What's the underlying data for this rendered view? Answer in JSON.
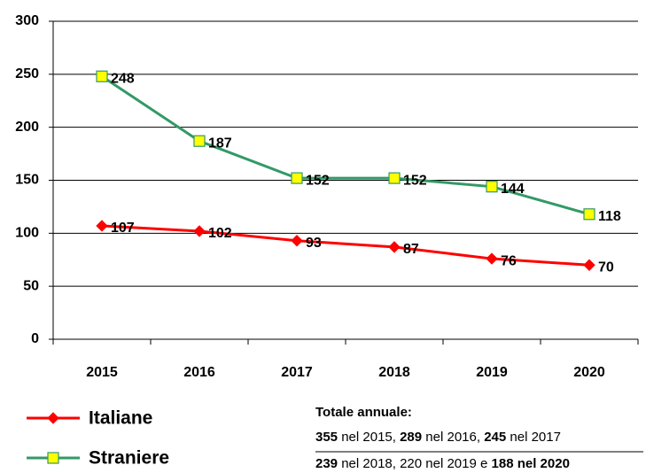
{
  "chart_data": {
    "type": "line",
    "categories": [
      "2015",
      "2016",
      "2017",
      "2018",
      "2019",
      "2020"
    ],
    "series": [
      {
        "name": "Italiane",
        "color": "#ff0000",
        "marker": "diamond",
        "marker_fill": "#ff0000",
        "values": [
          107,
          102,
          93,
          87,
          76,
          70
        ]
      },
      {
        "name": "Straniere",
        "color": "#339966",
        "marker": "square",
        "marker_fill": "#ffff00",
        "values": [
          248,
          187,
          152,
          152,
          144,
          118
        ]
      }
    ],
    "ylim": [
      0,
      300
    ],
    "yticks": [
      0,
      50,
      100,
      150,
      200,
      250,
      300
    ],
    "grid": true,
    "legend": "bottom-left",
    "note": {
      "heading": "Totale annuale:",
      "lines": [
        [
          {
            "text": "355",
            "bold": true
          },
          {
            "text": " nel 2015, "
          },
          {
            "text": "289",
            "bold": true
          },
          {
            "text": " nel 2016, "
          },
          {
            "text": "245",
            "bold": true
          },
          {
            "text": " nel 2017"
          }
        ],
        [
          {
            "text": "239",
            "bold": true
          },
          {
            "text": " nel 2018, 220 nel 2019 e "
          },
          {
            "text": "188 nel 2020",
            "bold": true
          }
        ]
      ]
    }
  }
}
